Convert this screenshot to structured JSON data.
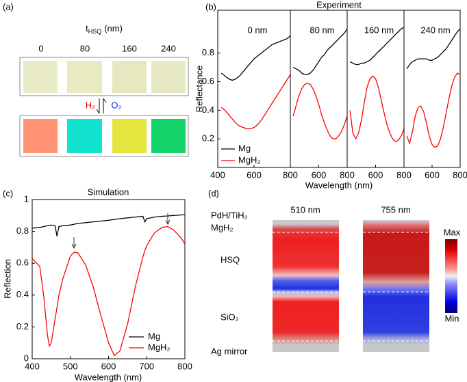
{
  "panel_a": {
    "label": "(a)",
    "axis_symbol": "t",
    "axis_subscript": "HSQ",
    "axis_unit": "(nm)",
    "thicknesses": [
      "0",
      "80",
      "160",
      "240"
    ],
    "forward": "H₂",
    "backward": "O₂"
  },
  "chart_data": [
    {
      "type": "line",
      "panel": "(b)",
      "title": "Experiment",
      "xlabel": "Wavelength (nm)",
      "ylabel": "Reflectance",
      "ylim": [
        0,
        1.1
      ],
      "yticks": [
        0.2,
        0.4,
        0.6,
        0.8
      ],
      "xlim": [
        400,
        800
      ],
      "subplots": [
        {
          "label": "0 nm",
          "xticks": [
            400,
            600,
            800
          ],
          "x": [
            420,
            440,
            460,
            480,
            500,
            520,
            540,
            560,
            580,
            600,
            620,
            640,
            660,
            680,
            700,
            720,
            740,
            760,
            780,
            800
          ],
          "series": [
            {
              "name": "Mg",
              "color": "#000000",
              "values": [
                0.66,
                0.64,
                0.62,
                0.61,
                0.62,
                0.64,
                0.67,
                0.7,
                0.73,
                0.76,
                0.78,
                0.8,
                0.82,
                0.84,
                0.86,
                0.87,
                0.88,
                0.89,
                0.9,
                0.92
              ]
            },
            {
              "name": "MgH₂",
              "color": "#ff0000",
              "values": [
                0.42,
                0.4,
                0.37,
                0.34,
                0.31,
                0.29,
                0.28,
                0.27,
                0.27,
                0.28,
                0.3,
                0.33,
                0.37,
                0.41,
                0.45,
                0.49,
                0.53,
                0.57,
                0.61,
                0.65
              ]
            }
          ]
        },
        {
          "label": "80 nm",
          "xticks": [
            600,
            800
          ],
          "x": [
            420,
            440,
            460,
            480,
            500,
            520,
            540,
            560,
            580,
            600,
            620,
            640,
            660,
            680,
            700,
            720,
            740,
            760,
            780,
            800
          ],
          "series": [
            {
              "name": "Mg",
              "color": "#000000",
              "values": [
                0.7,
                0.69,
                0.68,
                0.66,
                0.65,
                0.65,
                0.66,
                0.68,
                0.71,
                0.74,
                0.77,
                0.79,
                0.82,
                0.84,
                0.86,
                0.88,
                0.9,
                0.92,
                0.94,
                0.97
              ]
            },
            {
              "name": "MgH₂",
              "color": "#ff0000",
              "values": [
                0.36,
                0.43,
                0.5,
                0.55,
                0.58,
                0.59,
                0.58,
                0.55,
                0.5,
                0.44,
                0.37,
                0.31,
                0.26,
                0.22,
                0.2,
                0.2,
                0.22,
                0.25,
                0.3,
                0.36
              ]
            }
          ]
        },
        {
          "label": "160 nm",
          "xticks": [
            600,
            800
          ],
          "x": [
            420,
            440,
            460,
            480,
            500,
            520,
            540,
            560,
            580,
            600,
            620,
            640,
            660,
            680,
            700,
            720,
            740,
            760,
            780,
            800
          ],
          "series": [
            {
              "name": "Mg",
              "color": "#000000",
              "values": [
                0.74,
                0.73,
                0.72,
                0.72,
                0.73,
                0.73,
                0.74,
                0.75,
                0.77,
                0.79,
                0.81,
                0.83,
                0.85,
                0.87,
                0.89,
                0.91,
                0.93,
                0.95,
                0.97,
                0.98
              ]
            },
            {
              "name": "MgH₂",
              "color": "#ff0000",
              "values": [
                0.4,
                0.24,
                0.2,
                0.24,
                0.33,
                0.45,
                0.56,
                0.62,
                0.64,
                0.62,
                0.56,
                0.47,
                0.38,
                0.3,
                0.24,
                0.2,
                0.18,
                0.19,
                0.22,
                0.27
              ]
            }
          ]
        },
        {
          "label": "240 nm",
          "xticks": [
            600,
            800
          ],
          "x": [
            420,
            440,
            460,
            480,
            500,
            520,
            540,
            560,
            580,
            600,
            620,
            640,
            660,
            680,
            700,
            720,
            740,
            760,
            780,
            800
          ],
          "series": [
            {
              "name": "Mg",
              "color": "#000000",
              "values": [
                0.69,
                0.72,
                0.74,
                0.75,
                0.76,
                0.76,
                0.76,
                0.76,
                0.75,
                0.75,
                0.76,
                0.77,
                0.79,
                0.81,
                0.83,
                0.86,
                0.89,
                0.92,
                0.95,
                0.97
              ]
            },
            {
              "name": "MgH₂",
              "color": "#ff0000",
              "values": [
                0.22,
                0.17,
                0.25,
                0.36,
                0.42,
                0.43,
                0.39,
                0.31,
                0.22,
                0.16,
                0.14,
                0.15,
                0.2,
                0.28,
                0.38,
                0.48,
                0.57,
                0.63,
                0.66,
                0.65
              ]
            }
          ]
        }
      ]
    },
    {
      "type": "line",
      "panel": "(c)",
      "title": "Simulation",
      "xlabel": "Wavelength (nm)",
      "ylabel": "Reflection",
      "xlim": [
        400,
        800
      ],
      "xticks": [
        400,
        500,
        600,
        700,
        800
      ],
      "ylim": [
        0,
        1
      ],
      "yticks": [
        0,
        0.2,
        0.4,
        0.6,
        0.8,
        1
      ],
      "x": [
        400,
        420,
        430,
        440,
        445,
        450,
        460,
        465,
        470,
        480,
        500,
        510,
        520,
        540,
        560,
        580,
        600,
        615,
        630,
        650,
        670,
        690,
        695,
        700,
        720,
        740,
        755,
        770,
        790,
        800
      ],
      "series": [
        {
          "name": "Mg",
          "color": "#000000",
          "values": [
            0.82,
            0.825,
            0.83,
            0.835,
            0.837,
            0.84,
            0.835,
            0.77,
            0.83,
            0.835,
            0.84,
            0.845,
            0.85,
            0.855,
            0.86,
            0.865,
            0.87,
            0.875,
            0.88,
            0.885,
            0.89,
            0.895,
            0.86,
            0.88,
            0.89,
            0.895,
            0.897,
            0.9,
            0.903,
            0.905
          ]
        },
        {
          "name": "MgH₂",
          "color": "#ff0000",
          "values": [
            0.63,
            0.58,
            0.4,
            0.15,
            0.08,
            0.1,
            0.25,
            0.32,
            0.4,
            0.5,
            0.645,
            0.67,
            0.665,
            0.59,
            0.45,
            0.27,
            0.1,
            0.02,
            0.05,
            0.22,
            0.45,
            0.64,
            0.68,
            0.71,
            0.79,
            0.825,
            0.83,
            0.81,
            0.76,
            0.72
          ]
        }
      ]
    }
  ],
  "panel_d": {
    "label": "(d)",
    "wavelengths": [
      "510 nm",
      "755 nm"
    ],
    "layers": [
      "PdH/TiH₂",
      "MgH₂",
      "HSQ",
      "SiO₂",
      "Ag mirror"
    ],
    "colorbar_max": "Max",
    "colorbar_min": "Min"
  }
}
